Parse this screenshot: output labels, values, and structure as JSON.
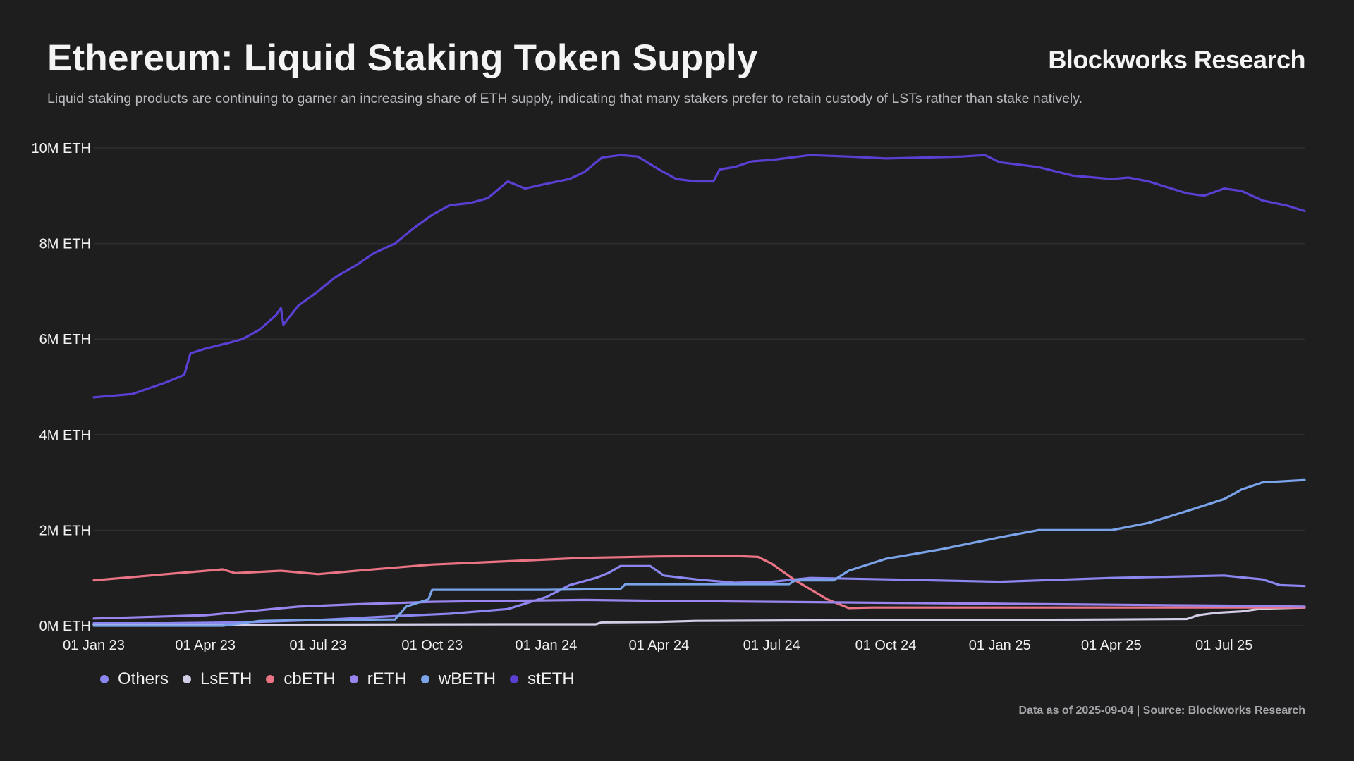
{
  "header": {
    "title": "Ethereum: Liquid Staking Token Supply",
    "brand": "Blockworks Research",
    "subtitle": "Liquid staking products are continuing to garner an increasing share of ETH supply, indicating that many stakers prefer to retain custody of LSTs rather than stake natively."
  },
  "footer": {
    "note": "Data as of 2025-09-04 | Source: Blockworks Research"
  },
  "chart_data": {
    "type": "line",
    "title": "Ethereum: Liquid Staking Token Supply",
    "xlabel": "",
    "ylabel": "",
    "x_range": [
      "2023-01-01",
      "2025-09-04"
    ],
    "ylim": [
      0,
      10
    ],
    "y_unit": "M ETH",
    "y_ticks": [
      0,
      2,
      4,
      6,
      8,
      10
    ],
    "y_tick_labels": [
      "0M ETH",
      "2M ETH",
      "4M ETH",
      "6M ETH",
      "8M ETH",
      "10M ETH"
    ],
    "x_tick_dates": [
      "2023-01-01",
      "2023-04-01",
      "2023-07-01",
      "2023-10-01",
      "2024-01-01",
      "2024-04-01",
      "2024-07-01",
      "2024-10-01",
      "2025-01-01",
      "2025-04-01",
      "2025-07-01"
    ],
    "x_tick_labels": [
      "01 Jan 23",
      "01 Apr 23",
      "01 Jul 23",
      "01 Oct 23",
      "01 Jan 24",
      "01 Apr 24",
      "01 Jul 24",
      "01 Oct 24",
      "01 Jan 25",
      "01 Apr 25",
      "01 Jul 25"
    ],
    "grid": true,
    "legend_position": "bottom-left",
    "series": [
      {
        "name": "Others",
        "color": "#8c86f0",
        "points": [
          [
            "2023-01-01",
            0.05
          ],
          [
            "2023-03-01",
            0.05
          ],
          [
            "2023-05-01",
            0.07
          ],
          [
            "2023-07-01",
            0.12
          ],
          [
            "2023-09-01",
            0.2
          ],
          [
            "2023-10-15",
            0.25
          ],
          [
            "2023-12-01",
            0.35
          ],
          [
            "2024-01-01",
            0.6
          ],
          [
            "2024-01-20",
            0.85
          ],
          [
            "2024-02-10",
            1.0
          ],
          [
            "2024-02-20",
            1.1
          ],
          [
            "2024-03-01",
            1.25
          ],
          [
            "2024-03-25",
            1.25
          ],
          [
            "2024-04-05",
            1.05
          ],
          [
            "2024-05-01",
            0.97
          ],
          [
            "2024-06-01",
            0.9
          ],
          [
            "2024-07-01",
            0.92
          ],
          [
            "2024-08-01",
            1.0
          ],
          [
            "2024-10-01",
            0.97
          ],
          [
            "2025-01-01",
            0.92
          ],
          [
            "2025-04-01",
            1.0
          ],
          [
            "2025-07-01",
            1.05
          ],
          [
            "2025-08-01",
            0.97
          ],
          [
            "2025-08-15",
            0.85
          ],
          [
            "2025-09-04",
            0.83
          ]
        ]
      },
      {
        "name": "LsETH",
        "color": "#d4cde6",
        "points": [
          [
            "2023-01-01",
            0.02
          ],
          [
            "2023-06-01",
            0.02
          ],
          [
            "2023-12-01",
            0.03
          ],
          [
            "2024-02-10",
            0.03
          ],
          [
            "2024-02-15",
            0.07
          ],
          [
            "2024-04-01",
            0.08
          ],
          [
            "2024-05-01",
            0.1
          ],
          [
            "2024-08-01",
            0.11
          ],
          [
            "2025-01-01",
            0.12
          ],
          [
            "2025-04-01",
            0.13
          ],
          [
            "2025-06-01",
            0.14
          ],
          [
            "2025-06-10",
            0.22
          ],
          [
            "2025-06-25",
            0.27
          ],
          [
            "2025-07-15",
            0.3
          ],
          [
            "2025-08-01",
            0.36
          ],
          [
            "2025-09-04",
            0.38
          ]
        ]
      },
      {
        "name": "cbETH",
        "color": "#ea7384",
        "points": [
          [
            "2023-01-01",
            0.95
          ],
          [
            "2023-02-15",
            1.05
          ],
          [
            "2023-04-15",
            1.18
          ],
          [
            "2023-04-25",
            1.1
          ],
          [
            "2023-06-01",
            1.15
          ],
          [
            "2023-07-01",
            1.08
          ],
          [
            "2023-08-01",
            1.15
          ],
          [
            "2023-10-01",
            1.28
          ],
          [
            "2023-12-01",
            1.35
          ],
          [
            "2024-02-01",
            1.42
          ],
          [
            "2024-04-01",
            1.45
          ],
          [
            "2024-06-01",
            1.46
          ],
          [
            "2024-06-20",
            1.44
          ],
          [
            "2024-07-01",
            1.3
          ],
          [
            "2024-07-20",
            0.95
          ],
          [
            "2024-08-15",
            0.55
          ],
          [
            "2024-09-01",
            0.37
          ],
          [
            "2024-09-20",
            0.38
          ],
          [
            "2025-01-01",
            0.38
          ],
          [
            "2025-05-01",
            0.38
          ],
          [
            "2025-09-04",
            0.38
          ]
        ]
      },
      {
        "name": "rETH",
        "color": "#9a85ee",
        "points": [
          [
            "2023-01-01",
            0.15
          ],
          [
            "2023-04-01",
            0.22
          ],
          [
            "2023-06-15",
            0.4
          ],
          [
            "2023-08-01",
            0.45
          ],
          [
            "2023-10-01",
            0.5
          ],
          [
            "2023-12-01",
            0.52
          ],
          [
            "2024-02-01",
            0.54
          ],
          [
            "2024-04-01",
            0.52
          ],
          [
            "2024-07-01",
            0.5
          ],
          [
            "2024-10-01",
            0.48
          ],
          [
            "2025-01-01",
            0.46
          ],
          [
            "2025-04-01",
            0.44
          ],
          [
            "2025-07-01",
            0.42
          ],
          [
            "2025-09-04",
            0.4
          ]
        ]
      },
      {
        "name": "wBETH",
        "color": "#7aa3ea",
        "points": [
          [
            "2023-01-01",
            0.0
          ],
          [
            "2023-04-15",
            0.0
          ],
          [
            "2023-05-15",
            0.1
          ],
          [
            "2023-07-01",
            0.12
          ],
          [
            "2023-09-01",
            0.13
          ],
          [
            "2023-09-10",
            0.4
          ],
          [
            "2023-09-28",
            0.55
          ],
          [
            "2023-10-01",
            0.75
          ],
          [
            "2024-01-01",
            0.75
          ],
          [
            "2024-03-01",
            0.77
          ],
          [
            "2024-03-05",
            0.87
          ],
          [
            "2024-06-01",
            0.87
          ],
          [
            "2024-07-15",
            0.87
          ],
          [
            "2024-07-20",
            0.95
          ],
          [
            "2024-08-20",
            0.95
          ],
          [
            "2024-09-01",
            1.15
          ],
          [
            "2024-10-01",
            1.4
          ],
          [
            "2024-11-15",
            1.6
          ],
          [
            "2025-01-01",
            1.85
          ],
          [
            "2025-02-01",
            2.0
          ],
          [
            "2025-04-01",
            2.0
          ],
          [
            "2025-05-01",
            2.15
          ],
          [
            "2025-06-01",
            2.4
          ],
          [
            "2025-07-01",
            2.65
          ],
          [
            "2025-07-15",
            2.85
          ],
          [
            "2025-08-01",
            3.0
          ],
          [
            "2025-09-04",
            3.05
          ]
        ]
      },
      {
        "name": "stETH",
        "color": "#5b3ed2",
        "points": [
          [
            "2023-01-01",
            4.78
          ],
          [
            "2023-02-01",
            4.85
          ],
          [
            "2023-03-01",
            5.1
          ],
          [
            "2023-03-15",
            5.25
          ],
          [
            "2023-03-20",
            5.7
          ],
          [
            "2023-04-01",
            5.8
          ],
          [
            "2023-04-20",
            5.92
          ],
          [
            "2023-05-01",
            6.0
          ],
          [
            "2023-05-15",
            6.2
          ],
          [
            "2023-05-28",
            6.5
          ],
          [
            "2023-06-01",
            6.65
          ],
          [
            "2023-06-03",
            6.3
          ],
          [
            "2023-06-15",
            6.7
          ],
          [
            "2023-07-01",
            7.0
          ],
          [
            "2023-07-15",
            7.3
          ],
          [
            "2023-08-01",
            7.55
          ],
          [
            "2023-08-15",
            7.8
          ],
          [
            "2023-09-01",
            8.0
          ],
          [
            "2023-09-15",
            8.3
          ],
          [
            "2023-10-01",
            8.6
          ],
          [
            "2023-10-15",
            8.8
          ],
          [
            "2023-11-01",
            8.85
          ],
          [
            "2023-11-15",
            8.95
          ],
          [
            "2023-12-01",
            9.3
          ],
          [
            "2023-12-15",
            9.15
          ],
          [
            "2024-01-01",
            9.25
          ],
          [
            "2024-01-20",
            9.35
          ],
          [
            "2024-02-01",
            9.5
          ],
          [
            "2024-02-15",
            9.8
          ],
          [
            "2024-03-01",
            9.85
          ],
          [
            "2024-03-15",
            9.82
          ],
          [
            "2024-04-01",
            9.55
          ],
          [
            "2024-04-15",
            9.35
          ],
          [
            "2024-05-01",
            9.3
          ],
          [
            "2024-05-15",
            9.3
          ],
          [
            "2024-05-20",
            9.55
          ],
          [
            "2024-06-01",
            9.6
          ],
          [
            "2024-06-15",
            9.72
          ],
          [
            "2024-07-01",
            9.75
          ],
          [
            "2024-08-01",
            9.85
          ],
          [
            "2024-09-01",
            9.82
          ],
          [
            "2024-10-01",
            9.78
          ],
          [
            "2024-11-01",
            9.8
          ],
          [
            "2024-12-01",
            9.82
          ],
          [
            "2024-12-20",
            9.85
          ],
          [
            "2025-01-01",
            9.7
          ],
          [
            "2025-02-01",
            9.6
          ],
          [
            "2025-03-01",
            9.42
          ],
          [
            "2025-04-01",
            9.35
          ],
          [
            "2025-04-15",
            9.38
          ],
          [
            "2025-05-01",
            9.3
          ],
          [
            "2025-06-01",
            9.05
          ],
          [
            "2025-06-15",
            9.0
          ],
          [
            "2025-07-01",
            9.15
          ],
          [
            "2025-07-15",
            9.1
          ],
          [
            "2025-08-01",
            8.9
          ],
          [
            "2025-08-20",
            8.8
          ],
          [
            "2025-09-04",
            8.68
          ]
        ]
      }
    ]
  }
}
